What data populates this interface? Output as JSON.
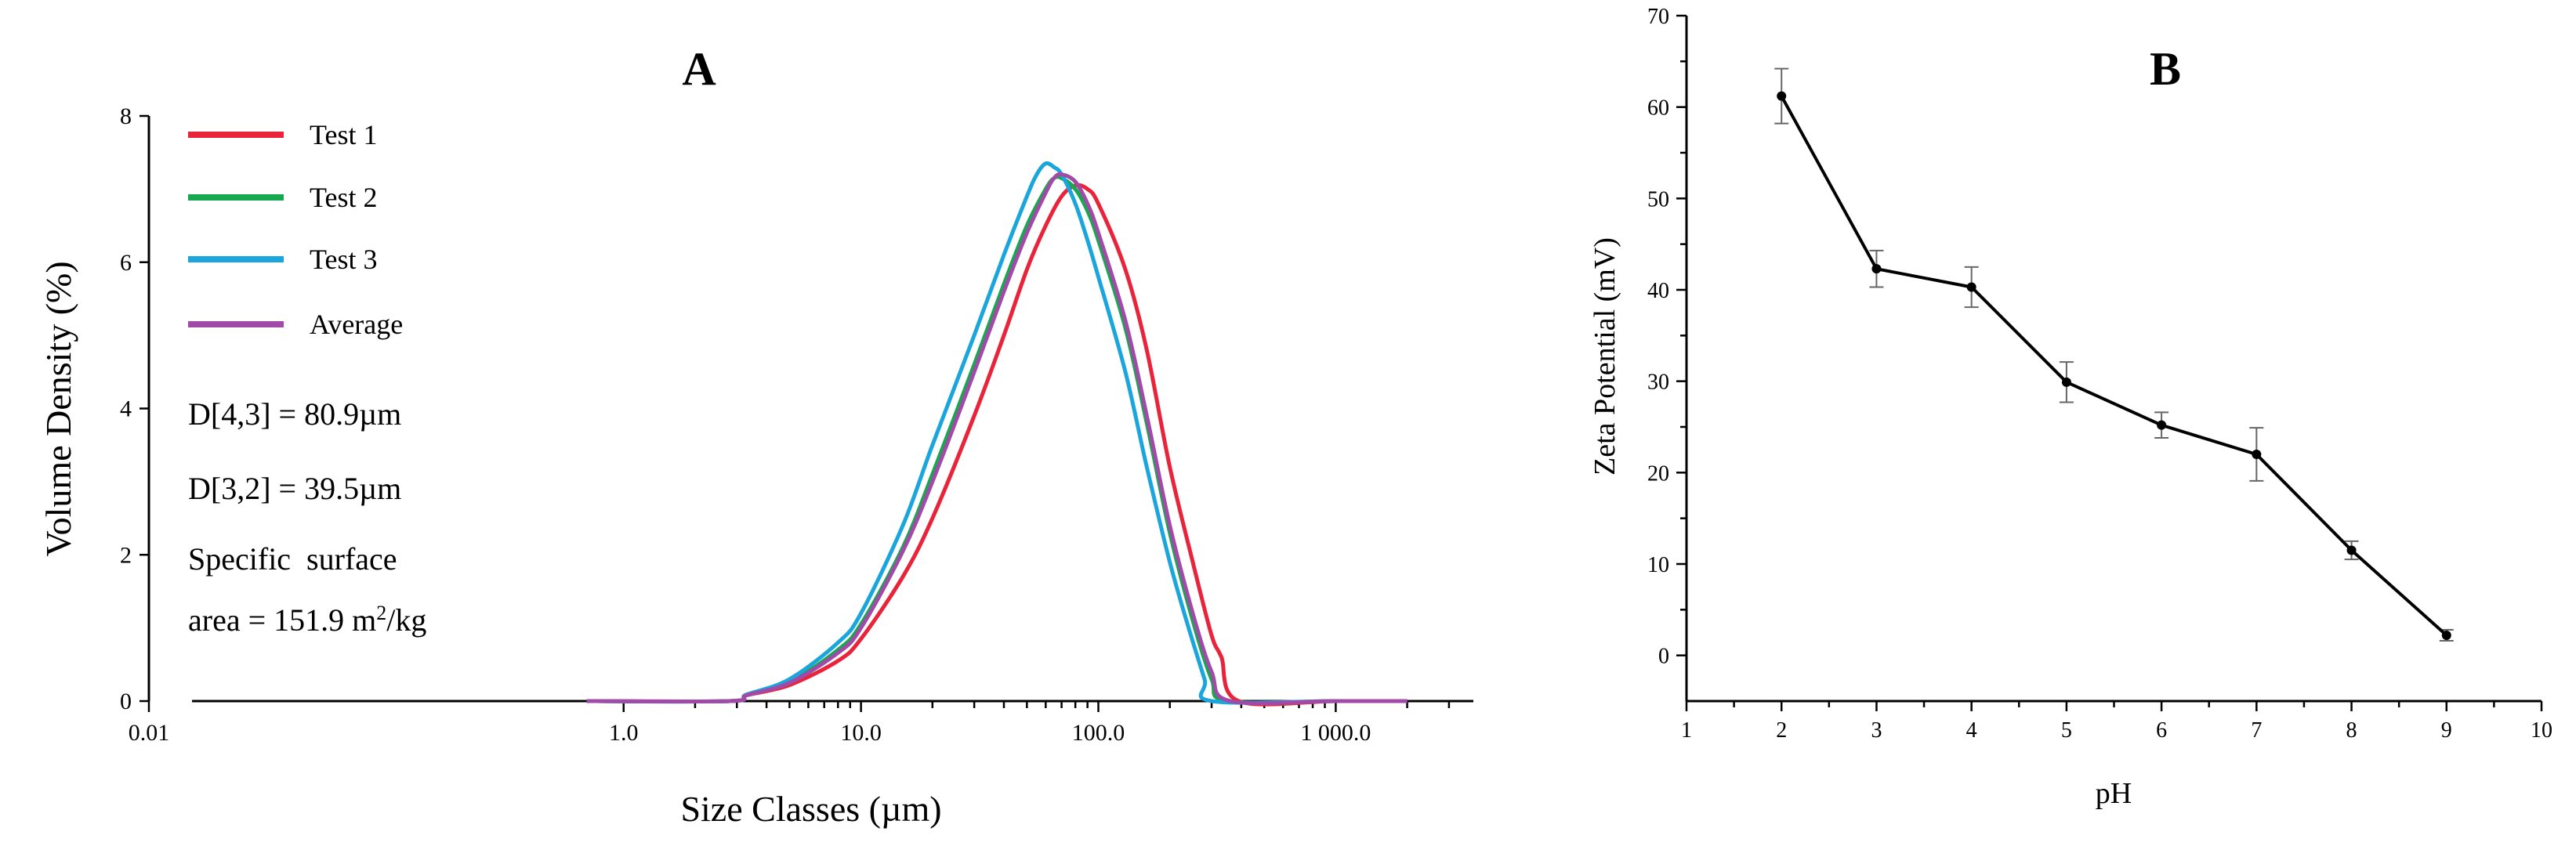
{
  "chart_data": [
    {
      "type": "line",
      "title": "A",
      "xlabel": "Size Classes (µm)",
      "ylabel": "Volume Density (%)",
      "xscale": "log",
      "xlim": [
        0.01,
        3800
      ],
      "ylim": [
        0,
        8
      ],
      "xticks": [
        {
          "value": 0.01,
          "label": "0.01"
        },
        {
          "value": 1,
          "label": "1.0"
        },
        {
          "value": 10,
          "label": "10.0"
        },
        {
          "value": 100,
          "label": "100.0"
        },
        {
          "value": 1000,
          "label": "1 000.0"
        }
      ],
      "yticks": [
        {
          "value": 0,
          "label": "0"
        },
        {
          "value": 2,
          "label": "2"
        },
        {
          "value": 4,
          "label": "4"
        },
        {
          "value": 6,
          "label": "6"
        },
        {
          "value": 8,
          "label": "8"
        }
      ],
      "legend_position": "top-left",
      "series": [
        {
          "name": "Test 1",
          "color": "#e8233a",
          "x": [
            0.7,
            2.8,
            3.3,
            5,
            8,
            10,
            15,
            20,
            30,
            40,
            50,
            60,
            70,
            80,
            90,
            100,
            130,
            160,
            200,
            250,
            300,
            330,
            390,
            1000,
            2000
          ],
          "y": [
            0,
            0,
            0.08,
            0.22,
            0.55,
            0.85,
            1.7,
            2.5,
            3.9,
            5.0,
            5.9,
            6.5,
            6.9,
            7.05,
            7.0,
            6.8,
            5.9,
            4.8,
            3.2,
            1.9,
            0.9,
            0.6,
            0,
            0,
            0
          ]
        },
        {
          "name": "Test 2",
          "color": "#16a84e",
          "x": [
            0.7,
            2.8,
            3.3,
            5,
            8,
            10,
            15,
            20,
            30,
            40,
            50,
            60,
            65,
            70,
            80,
            90,
            100,
            130,
            160,
            200,
            250,
            300,
            350,
            1000,
            2000
          ],
          "y": [
            0,
            0,
            0.09,
            0.26,
            0.7,
            1.05,
            2.1,
            3.1,
            4.6,
            5.7,
            6.5,
            7.0,
            7.15,
            7.15,
            7.0,
            6.7,
            6.3,
            5.1,
            3.8,
            2.3,
            1.1,
            0.3,
            0,
            0,
            0
          ]
        },
        {
          "name": "Test 3",
          "color": "#1aa6dc",
          "x": [
            0.7,
            2.8,
            3.3,
            5,
            8,
            10,
            15,
            20,
            30,
            40,
            50,
            55,
            60,
            65,
            70,
            80,
            90,
            100,
            130,
            160,
            200,
            240,
            280,
            300,
            1000,
            2000
          ],
          "y": [
            0,
            0,
            0.09,
            0.3,
            0.8,
            1.2,
            2.4,
            3.5,
            5.0,
            6.1,
            6.9,
            7.2,
            7.35,
            7.3,
            7.2,
            6.8,
            6.3,
            5.8,
            4.5,
            3.2,
            1.9,
            1.0,
            0.3,
            0,
            0,
            0
          ]
        },
        {
          "name": "Average",
          "color": "#a24aa8",
          "x": [
            0.7,
            2.8,
            3.3,
            5,
            8,
            10,
            15,
            20,
            30,
            40,
            50,
            60,
            65,
            70,
            80,
            90,
            100,
            130,
            160,
            200,
            250,
            300,
            360,
            1000,
            2000
          ],
          "y": [
            0,
            0,
            0.08,
            0.25,
            0.66,
            1.0,
            2.05,
            3.0,
            4.5,
            5.6,
            6.4,
            6.95,
            7.15,
            7.2,
            7.1,
            6.8,
            6.4,
            5.2,
            3.9,
            2.4,
            1.2,
            0.4,
            0,
            0,
            0
          ]
        }
      ],
      "annotations": [
        "D[4,3] = 80.9µm",
        "D[3,2] = 39.5µm",
        "Specific  surface"
      ],
      "area_text": {
        "prefix": "area = 151.9 m",
        "sup": "2",
        "suffix": "/kg"
      }
    },
    {
      "type": "line",
      "title": "B",
      "xlabel": "pH",
      "ylabel": "Zeta Potential (mV)",
      "xlim": [
        1,
        10
      ],
      "ylim": [
        -5,
        70
      ],
      "xticks": [
        1,
        2,
        3,
        4,
        5,
        6,
        7,
        8,
        9,
        10
      ],
      "yticks": [
        0,
        10,
        20,
        30,
        40,
        50,
        60,
        70
      ],
      "series": [
        {
          "name": "Zeta potential",
          "color": "#000000",
          "x": [
            2,
            3,
            4,
            5,
            6,
            7,
            8,
            9
          ],
          "y": [
            61.2,
            42.3,
            40.3,
            29.9,
            25.2,
            22.0,
            11.5,
            2.2
          ],
          "error": [
            3.0,
            2.0,
            2.2,
            2.2,
            1.4,
            2.9,
            1.0,
            0.6
          ]
        }
      ]
    }
  ]
}
